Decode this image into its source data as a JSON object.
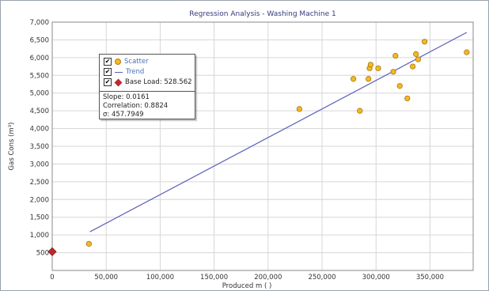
{
  "chart_data": {
    "type": "scatter",
    "title": "Regression Analysis - Washing Machine 1",
    "xlabel": "Produced m ( )",
    "ylabel": "Gas Cons (m³)",
    "xlim": [
      0,
      390000
    ],
    "ylim": [
      0,
      7000
    ],
    "x_ticks": [
      "0",
      "50,000",
      "100,000",
      "150,000",
      "200,000",
      "250,000",
      "300,000",
      "350,000"
    ],
    "y_ticks": [
      "500",
      "1,000",
      "1,500",
      "2,000",
      "2,500",
      "3,000",
      "3,500",
      "4,000",
      "4,500",
      "5,000",
      "5,500",
      "6,000",
      "6,500",
      "7,000"
    ],
    "grid": true,
    "legend_position": "top-left",
    "series": [
      {
        "name": "Scatter",
        "kind": "scatter",
        "color": "#f5b921",
        "points": [
          [
            34000,
            750
          ],
          [
            229000,
            4550
          ],
          [
            279000,
            5400
          ],
          [
            285000,
            4500
          ],
          [
            293000,
            5400
          ],
          [
            294000,
            5700
          ],
          [
            295000,
            5800
          ],
          [
            302000,
            5700
          ],
          [
            316000,
            5600
          ],
          [
            318000,
            6050
          ],
          [
            322000,
            5200
          ],
          [
            329000,
            4850
          ],
          [
            334000,
            5750
          ],
          [
            337000,
            6100
          ],
          [
            339000,
            5950
          ],
          [
            345000,
            6450
          ],
          [
            384000,
            6150
          ]
        ]
      },
      {
        "name": "Trend",
        "kind": "line",
        "color": "#5a5fb8",
        "points": [
          [
            35000,
            1091
          ],
          [
            384000,
            6710
          ]
        ]
      },
      {
        "name": "Base Load: 528.562",
        "kind": "marker",
        "color": "#c0282d",
        "points": [
          [
            0,
            528.562
          ]
        ]
      }
    ],
    "stats": {
      "slope": "Slope: 0.0161",
      "correlation": "Correlation: 0.8824",
      "sigma": "σ: 457.7949"
    }
  },
  "legend": {
    "scatter_label": "Scatter",
    "trend_label": "Trend",
    "base_label": "Base Load: 528.562",
    "check": "✔"
  }
}
